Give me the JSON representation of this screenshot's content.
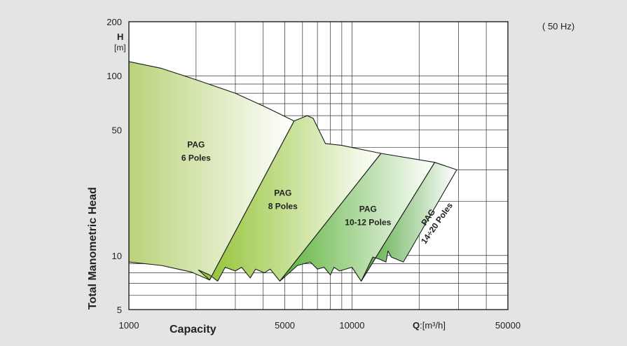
{
  "frequency_label": "( 50 Hz)",
  "chart_data": {
    "type": "area",
    "x_scale": "log",
    "y_scale": "log",
    "xlim": [
      1000,
      50000
    ],
    "ylim": [
      5,
      200
    ],
    "grid": true,
    "ylabel": "Total Manometric Head",
    "y_unit_symbol": "H",
    "y_unit": "[m]",
    "xlabel": "Capacity",
    "x_unit_symbol": "Q",
    "x_unit": ":[m³/h]",
    "x_ticks": [
      {
        "value": 1000,
        "label": "1000"
      },
      {
        "value": 5000,
        "label": "5000"
      },
      {
        "value": 10000,
        "label": "10000"
      },
      {
        "value": 50000,
        "label": "50000"
      }
    ],
    "y_ticks": [
      {
        "value": 5,
        "label": "5"
      },
      {
        "value": 10,
        "label": "10"
      },
      {
        "value": 50,
        "label": "50"
      },
      {
        "value": 100,
        "label": "100"
      },
      {
        "value": 200,
        "label": "200"
      }
    ],
    "series": [
      {
        "name": "PAG\n6 Poles",
        "color_start": "#b9d37a",
        "polygon": [
          [
            1000,
            120
          ],
          [
            1400,
            110
          ],
          [
            2000,
            95
          ],
          [
            3000,
            80
          ],
          [
            4000,
            68
          ],
          [
            5500,
            56
          ],
          [
            2300,
            7.3
          ],
          [
            1900,
            8.1
          ],
          [
            1400,
            8.8
          ],
          [
            1000,
            9.2
          ]
        ],
        "label_pos": [
          2000,
          40
        ]
      },
      {
        "name": "PAG\n8 Poles",
        "color_start": "#8fc12e",
        "polygon": [
          [
            5500,
            56
          ],
          [
            6300,
            60
          ],
          [
            6700,
            58
          ],
          [
            7600,
            42
          ],
          [
            9000,
            41
          ],
          [
            13500,
            37
          ],
          [
            4750,
            7.2
          ],
          [
            4300,
            8.4
          ],
          [
            4050,
            8.0
          ],
          [
            3700,
            8.4
          ],
          [
            3500,
            7.5
          ],
          [
            3200,
            8.6
          ],
          [
            3000,
            8.2
          ],
          [
            2700,
            8.6
          ],
          [
            2500,
            7.2
          ],
          [
            2300,
            7.8
          ],
          [
            2050,
            8.3
          ],
          [
            2300,
            7.3
          ]
        ],
        "label_pos": [
          4900,
          21.5
        ]
      },
      {
        "name": "PAG\n10-12 Poles",
        "color_start": "#5fb33f",
        "polygon": [
          [
            13500,
            37
          ],
          [
            23500,
            33
          ],
          [
            11000,
            7.2
          ],
          [
            10000,
            8.6
          ],
          [
            8800,
            8.2
          ],
          [
            8300,
            8.6
          ],
          [
            8000,
            7.8
          ],
          [
            7500,
            8.6
          ],
          [
            7000,
            8.4
          ],
          [
            6500,
            9.2
          ],
          [
            5700,
            8.8
          ],
          [
            4750,
            7.2
          ]
        ],
        "label_pos": [
          11800,
          17.5
        ]
      },
      {
        "name": "PAG\n14÷20 Poles",
        "color_start": "#55a840",
        "polygon": [
          [
            23500,
            33
          ],
          [
            29500,
            30
          ],
          [
            17000,
            9.2
          ],
          [
            15000,
            9.8
          ],
          [
            14500,
            10.6
          ],
          [
            14200,
            9.2
          ],
          [
            13400,
            9.5
          ],
          [
            12400,
            9.8
          ],
          [
            11000,
            7.2
          ]
        ],
        "label_pos": [
          22500,
          16
        ]
      }
    ]
  }
}
